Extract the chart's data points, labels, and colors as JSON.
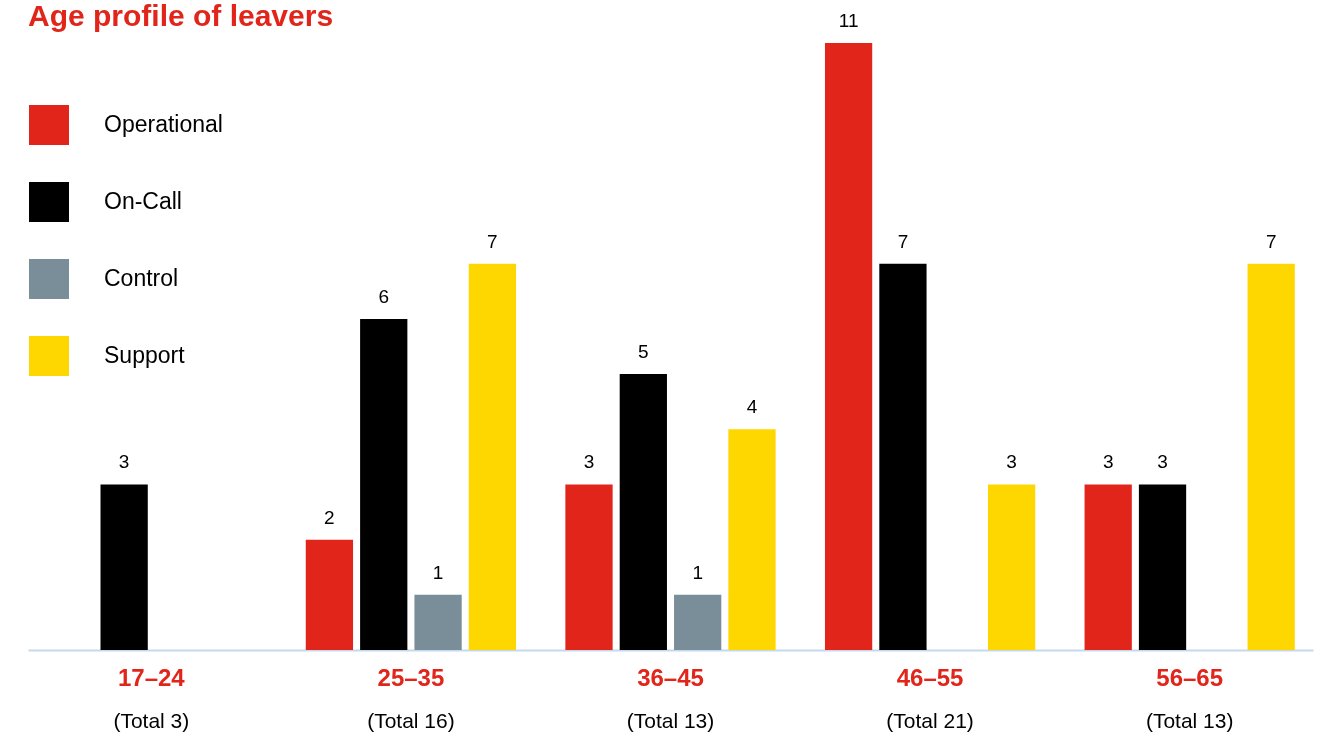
{
  "chart_data": {
    "type": "bar",
    "title": "Age profile of leavers",
    "categories": [
      "17–24",
      "25–35",
      "36–45",
      "46–55",
      "56–65"
    ],
    "totals": [
      "(Total 3)",
      "(Total 16)",
      "(Total 13)",
      "(Total 21)",
      "(Total 13)"
    ],
    "series": [
      {
        "name": "Operational",
        "color": "#e1251b",
        "values": [
          null,
          2,
          3,
          11,
          3
        ]
      },
      {
        "name": "On-Call",
        "color": "#000000",
        "values": [
          3,
          6,
          5,
          7,
          3
        ]
      },
      {
        "name": "Control",
        "color": "#7a8e99",
        "values": [
          null,
          1,
          1,
          null,
          null
        ]
      },
      {
        "name": "Support",
        "color": "#ffd700",
        "values": [
          null,
          7,
          4,
          3,
          7
        ]
      }
    ],
    "data_labels": true,
    "legend": "top left",
    "grid": false
  }
}
